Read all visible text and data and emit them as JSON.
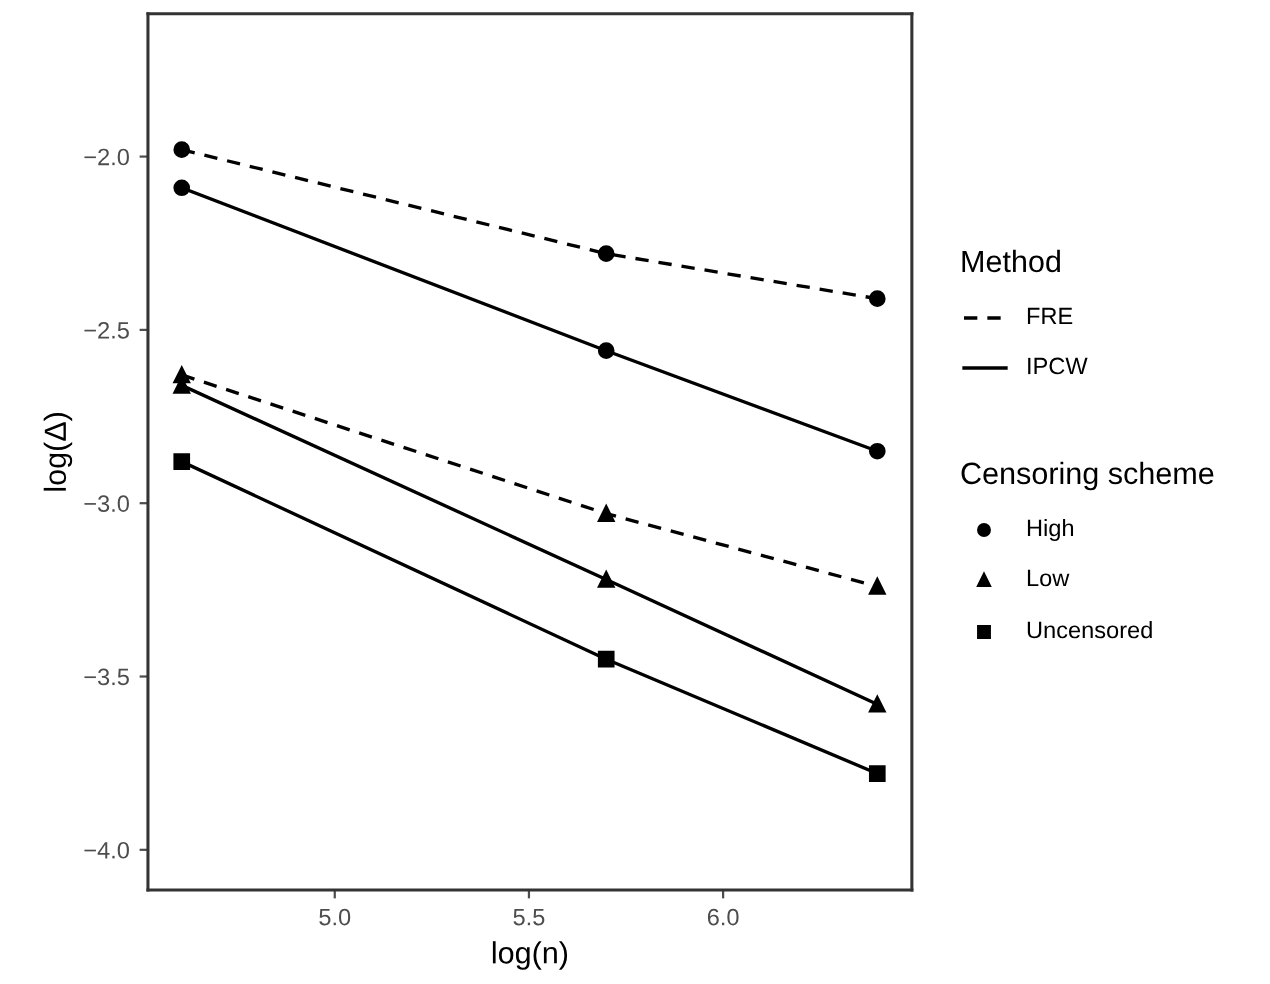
{
  "chart_data": {
    "type": "line",
    "xlabel": "log(n)",
    "ylabel": "log(Δ)",
    "x": [
      4.606,
      5.699,
      6.397
    ],
    "xlim": [
      4.519,
      6.486
    ],
    "xticks": [
      {
        "value": 5.0,
        "label": "5.0"
      },
      {
        "value": 5.5,
        "label": "5.5"
      },
      {
        "value": 6.0,
        "label": "6.0"
      }
    ],
    "ylim": [
      -4.116,
      -1.588
    ],
    "yticks": [
      {
        "value": -4.0,
        "label": "−4.0"
      },
      {
        "value": -3.5,
        "label": "−3.5"
      },
      {
        "value": -3.0,
        "label": "−3.0"
      },
      {
        "value": -2.5,
        "label": "−2.5"
      },
      {
        "value": -2.0,
        "label": "−2.0"
      }
    ],
    "grid": false,
    "annotations": [
      "Method",
      "FRE",
      "IPCW",
      "Censoring scheme",
      "High",
      "Low",
      "Uncensored"
    ],
    "series": [
      {
        "color": "#000000",
        "line_style": "dashed",
        "marker": "circle",
        "values": [
          -1.98,
          -2.28,
          -2.41
        ]
      },
      {
        "color": "#000000",
        "line_style": "solid",
        "marker": "circle",
        "values": [
          -2.09,
          -2.56,
          -2.85
        ]
      },
      {
        "color": "#000000",
        "line_style": "dashed",
        "marker": "triangle",
        "values": [
          -2.63,
          -3.03,
          -3.24
        ]
      },
      {
        "color": "#000000",
        "line_style": "solid",
        "marker": "triangle",
        "values": [
          -2.66,
          -3.22,
          -3.58
        ]
      },
      {
        "color": "#000000",
        "line_style": "solid",
        "marker": "square",
        "values": [
          -2.88,
          -3.45,
          -3.78
        ]
      }
    ]
  }
}
